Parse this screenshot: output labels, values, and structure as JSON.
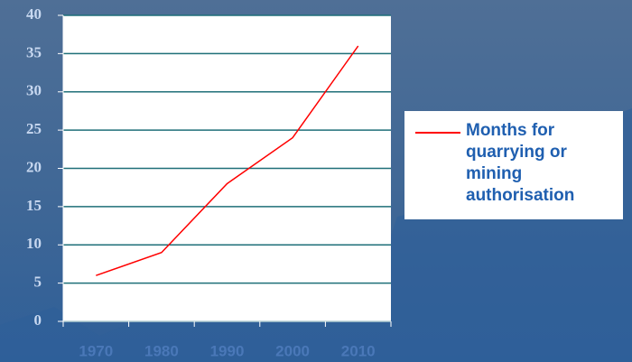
{
  "chart_data": {
    "type": "line",
    "categories": [
      "1970",
      "1980",
      "1990",
      "2000",
      "2010"
    ],
    "series": [
      {
        "name": "Months for quarrying or mining authorisation",
        "color": "#ff0000",
        "values": [
          6,
          9,
          18,
          24,
          36
        ]
      }
    ],
    "ylim": [
      0,
      40
    ],
    "yticks": [
      0,
      5,
      10,
      15,
      20,
      25,
      30,
      35,
      40
    ],
    "grid": true
  }
}
